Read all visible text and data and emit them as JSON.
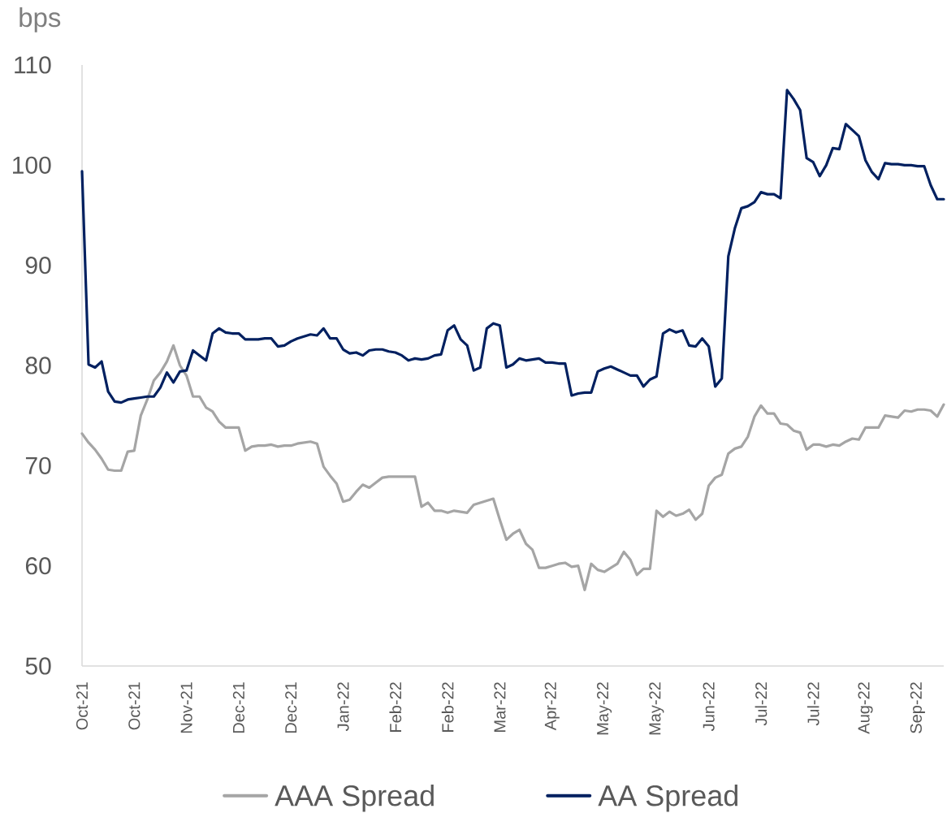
{
  "chart_data": {
    "type": "line",
    "ylabel": "bps",
    "categories": [
      "Oct-21",
      null,
      null,
      null,
      null,
      null,
      null,
      null,
      "Oct-21",
      null,
      null,
      null,
      null,
      null,
      null,
      null,
      "Nov-21",
      null,
      null,
      null,
      null,
      null,
      null,
      null,
      "Dec-21",
      null,
      null,
      null,
      null,
      null,
      null,
      null,
      "Dec-21",
      null,
      null,
      null,
      null,
      null,
      null,
      null,
      "Jan-22",
      null,
      null,
      null,
      null,
      null,
      null,
      null,
      "Feb-22",
      null,
      null,
      null,
      null,
      null,
      null,
      null,
      "Feb-22",
      null,
      null,
      null,
      null,
      null,
      null,
      null,
      "Mar-22",
      null,
      null,
      null,
      null,
      null,
      null,
      null,
      "Apr-22",
      null,
      null,
      null,
      null,
      null,
      null,
      null,
      "May-22",
      null,
      null,
      null,
      null,
      null,
      null,
      null,
      "May-22",
      null,
      null,
      null,
      null,
      null,
      null,
      null,
      "Jun-22",
      null,
      null,
      null,
      null,
      null,
      null,
      null,
      "Jul-22",
      null,
      null,
      null,
      null,
      null,
      null,
      null,
      "Jul-22",
      null,
      null,
      null,
      null,
      null,
      null,
      null,
      "Aug-22",
      null,
      null,
      null,
      null,
      null,
      null,
      null,
      "Sep-22",
      null,
      null,
      null,
      null
    ],
    "series": [
      {
        "name": "AAA Spread",
        "color": "#a5a5a5",
        "values": [
          73.2,
          72.3,
          71.6,
          70.7,
          69.6,
          69.5,
          69.5,
          71.4,
          71.5,
          75.0,
          76.6,
          78.5,
          79.3,
          80.4,
          82.0,
          80.0,
          79.0,
          76.9,
          76.9,
          75.8,
          75.4,
          74.4,
          73.8,
          73.8,
          73.8,
          71.5,
          71.9,
          72.0,
          72.0,
          72.1,
          71.9,
          72.0,
          72.0,
          72.2,
          72.3,
          72.4,
          72.2,
          69.9,
          69.0,
          68.2,
          66.4,
          66.6,
          67.4,
          68.1,
          67.8,
          68.3,
          68.8,
          68.9,
          68.9,
          68.9,
          68.9,
          68.9,
          65.9,
          66.3,
          65.5,
          65.5,
          65.3,
          65.5,
          65.4,
          65.3,
          66.1,
          66.3,
          66.5,
          66.7,
          64.6,
          62.6,
          63.2,
          63.6,
          62.2,
          61.6,
          59.8,
          59.8,
          60.0,
          60.2,
          60.3,
          59.9,
          60.0,
          57.6,
          60.2,
          59.6,
          59.4,
          59.8,
          60.2,
          61.4,
          60.6,
          59.1,
          59.7,
          59.7,
          65.5,
          64.9,
          65.4,
          65.0,
          65.2,
          65.6,
          64.6,
          65.2,
          68.0,
          68.8,
          69.1,
          71.2,
          71.7,
          71.9,
          72.9,
          74.9,
          76.0,
          75.2,
          75.2,
          74.2,
          74.1,
          73.5,
          73.3,
          71.6,
          72.1,
          72.1,
          71.9,
          72.1,
          72.0,
          72.4,
          72.7,
          72.6,
          73.8,
          73.8,
          73.8,
          75.0,
          74.9,
          74.8,
          75.5,
          75.4,
          75.6,
          75.6,
          75.5,
          74.9,
          76.1
        ]
      },
      {
        "name": "AA  Spread",
        "color": "#002060",
        "values": [
          99.4,
          80.1,
          79.8,
          80.4,
          77.4,
          76.4,
          76.3,
          76.6,
          76.7,
          76.8,
          76.9,
          76.9,
          77.8,
          79.3,
          78.3,
          79.4,
          79.5,
          81.5,
          81.0,
          80.5,
          83.2,
          83.7,
          83.3,
          83.2,
          83.2,
          82.6,
          82.6,
          82.6,
          82.7,
          82.7,
          81.9,
          82.0,
          82.4,
          82.7,
          82.9,
          83.1,
          83.0,
          83.7,
          82.7,
          82.7,
          81.6,
          81.2,
          81.3,
          81.0,
          81.5,
          81.6,
          81.6,
          81.4,
          81.3,
          81.0,
          80.5,
          80.7,
          80.6,
          80.7,
          81.0,
          81.1,
          83.5,
          84.0,
          82.6,
          82.0,
          79.5,
          79.8,
          83.7,
          84.2,
          84.0,
          79.8,
          80.1,
          80.7,
          80.5,
          80.6,
          80.7,
          80.3,
          80.3,
          80.2,
          80.2,
          77.0,
          77.2,
          77.3,
          77.3,
          79.4,
          79.7,
          79.9,
          79.6,
          79.3,
          79.0,
          79.0,
          77.9,
          78.6,
          78.9,
          83.2,
          83.6,
          83.3,
          83.5,
          82.0,
          81.9,
          82.7,
          81.9,
          77.9,
          78.7,
          90.9,
          93.7,
          95.7,
          95.9,
          96.3,
          97.3,
          97.1,
          97.1,
          96.7,
          107.5,
          106.6,
          105.5,
          100.7,
          100.3,
          98.9,
          100.0,
          101.7,
          101.6,
          104.1,
          103.5,
          102.9,
          100.5,
          99.3,
          98.6,
          100.2,
          100.1,
          100.1,
          100.0,
          100.0,
          99.9,
          99.9,
          98.0,
          96.6,
          96.6
        ]
      }
    ],
    "ylim": [
      50,
      110
    ],
    "yticks": [
      50,
      60,
      70,
      80,
      90,
      100,
      110
    ],
    "legend": "bottom"
  }
}
